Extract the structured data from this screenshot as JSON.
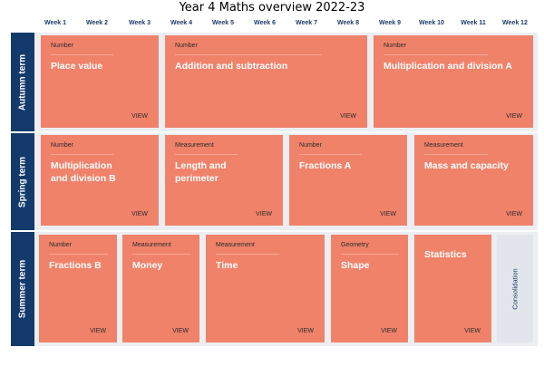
{
  "title": "Year 4 Maths overview 2022-23",
  "weeks": [
    "Week 1",
    "Week 2",
    "Week 3",
    "Week 4",
    "Week 5",
    "Week 6",
    "Week 7",
    "Week 8",
    "Week 9",
    "Week 10",
    "Week 11",
    "Week 12"
  ],
  "colors": {
    "term_bar": "#133a6b",
    "card": "#f0826a",
    "panel": "#eceef1",
    "consolidation": "#e2e6ec"
  },
  "terms": {
    "autumn": {
      "label": "Autumn term",
      "cards": [
        {
          "category": "Number",
          "name": "Place value",
          "action": "VIEW"
        },
        {
          "category": "Number",
          "name": "Addition and subtraction",
          "action": "VIEW"
        },
        {
          "category": "Number",
          "name": "Multiplication and division A",
          "action": "VIEW"
        }
      ]
    },
    "spring": {
      "label": "Spring term",
      "cards": [
        {
          "category": "Number",
          "name": "Multiplication and division B",
          "action": "VIEW"
        },
        {
          "category": "Measurement",
          "name": "Length and perimeter",
          "action": "VIEW"
        },
        {
          "category": "Number",
          "name": "Fractions A",
          "action": "VIEW"
        },
        {
          "category": "Measurement",
          "name": "Mass and capacity",
          "action": "VIEW"
        }
      ]
    },
    "summer": {
      "label": "Summer term",
      "cards": [
        {
          "category": "Number",
          "name": "Fractions B",
          "action": "VIEW"
        },
        {
          "category": "Measurement",
          "name": "Money",
          "action": "VIEW"
        },
        {
          "category": "Measurement",
          "name": "Time",
          "action": "VIEW"
        },
        {
          "category": "Geometry",
          "name": "Shape",
          "action": "VIEW"
        },
        {
          "category": "",
          "name": "Statistics",
          "action": "VIEW"
        }
      ],
      "consolidation": "Consolidation"
    }
  }
}
